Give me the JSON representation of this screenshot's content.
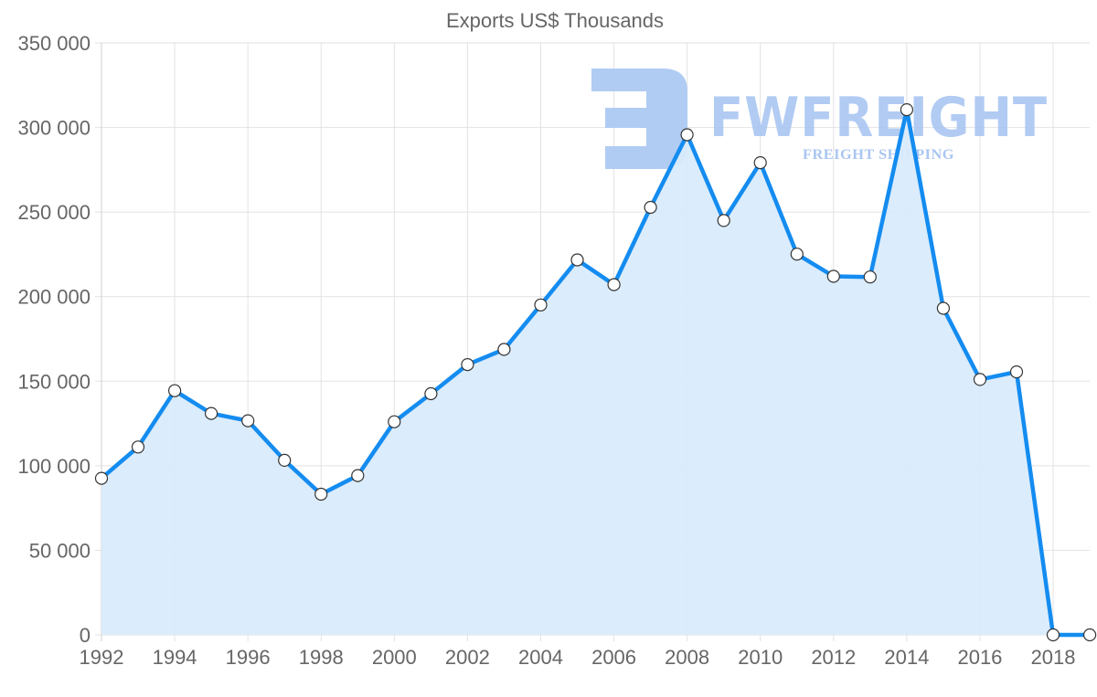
{
  "chart_data": {
    "type": "area",
    "title": "Exports US$ Thousands",
    "xlabel": "",
    "ylabel": "",
    "x": [
      1992,
      1993,
      1994,
      1995,
      1996,
      1997,
      1998,
      1999,
      2000,
      2001,
      2002,
      2003,
      2004,
      2005,
      2006,
      2007,
      2008,
      2009,
      2010,
      2011,
      2012,
      2013,
      2014,
      2015,
      2016,
      2017,
      2018,
      2019
    ],
    "series": [
      {
        "name": "Exports US$ Thousands",
        "values": [
          92600,
          111100,
          144400,
          130900,
          126600,
          103200,
          83200,
          94200,
          126000,
          142600,
          159800,
          168800,
          195100,
          221700,
          207100,
          252800,
          295700,
          245000,
          279200,
          225100,
          212000,
          211600,
          310500,
          193100,
          151000,
          155500,
          0,
          0
        ]
      }
    ],
    "ylim": [
      0,
      350000
    ],
    "y_ticks": [
      0,
      50000,
      100000,
      150000,
      200000,
      250000,
      300000,
      350000
    ],
    "y_tick_labels": [
      "0",
      "50 000",
      "100 000",
      "150 000",
      "200 000",
      "250 000",
      "300 000",
      "350 000"
    ],
    "x_tick_labels": [
      "1992",
      "1994",
      "1996",
      "1998",
      "2000",
      "2002",
      "2004",
      "2006",
      "2008",
      "2010",
      "2012",
      "2014",
      "2016",
      "2018"
    ],
    "grid": true,
    "legend": "none",
    "colors": {
      "line": "#148cf0",
      "fill": "#d9ebfc",
      "point_fill": "#ffffff",
      "point_stroke": "#333333",
      "grid": "#e2e2e2",
      "tick_text": "#666666"
    }
  },
  "watermark": {
    "brand": "FWFREIGHT",
    "tagline": "FREIGHT SHIPPING"
  }
}
